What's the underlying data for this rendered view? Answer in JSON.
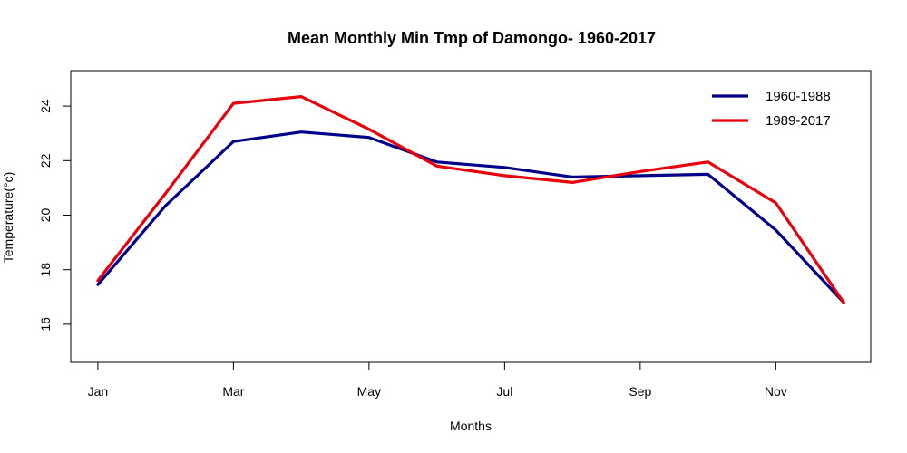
{
  "chart_data": {
    "type": "line",
    "title": "Mean Monthly Min Tmp of Damongo- 1960-2017",
    "xlabel": "Months",
    "ylabel": "Temperature(°c)",
    "x": [
      1,
      2,
      3,
      4,
      5,
      6,
      7,
      8,
      9,
      10,
      11,
      12
    ],
    "xticks": [
      1,
      3,
      5,
      7,
      9,
      11
    ],
    "xtick_labels": [
      "Jan",
      "Mar",
      "May",
      "Jul",
      "Sep",
      "Nov"
    ],
    "xlim": [
      0.6,
      12.4
    ],
    "yticks": [
      16,
      18,
      20,
      22,
      24
    ],
    "ylim": [
      14.6,
      25.3
    ],
    "grid": false,
    "legend_position": "top-right",
    "series": [
      {
        "name": "1960-1988",
        "color": "#00008B",
        "values": [
          17.45,
          20.35,
          22.7,
          23.05,
          22.85,
          21.95,
          21.75,
          21.4,
          21.45,
          21.5,
          19.45,
          16.8
        ]
      },
      {
        "name": "1989-2017",
        "color": "#E8000B",
        "values": [
          17.6,
          20.8,
          24.1,
          24.35,
          23.15,
          21.8,
          21.45,
          21.2,
          21.6,
          21.95,
          20.45,
          16.8
        ]
      }
    ]
  }
}
